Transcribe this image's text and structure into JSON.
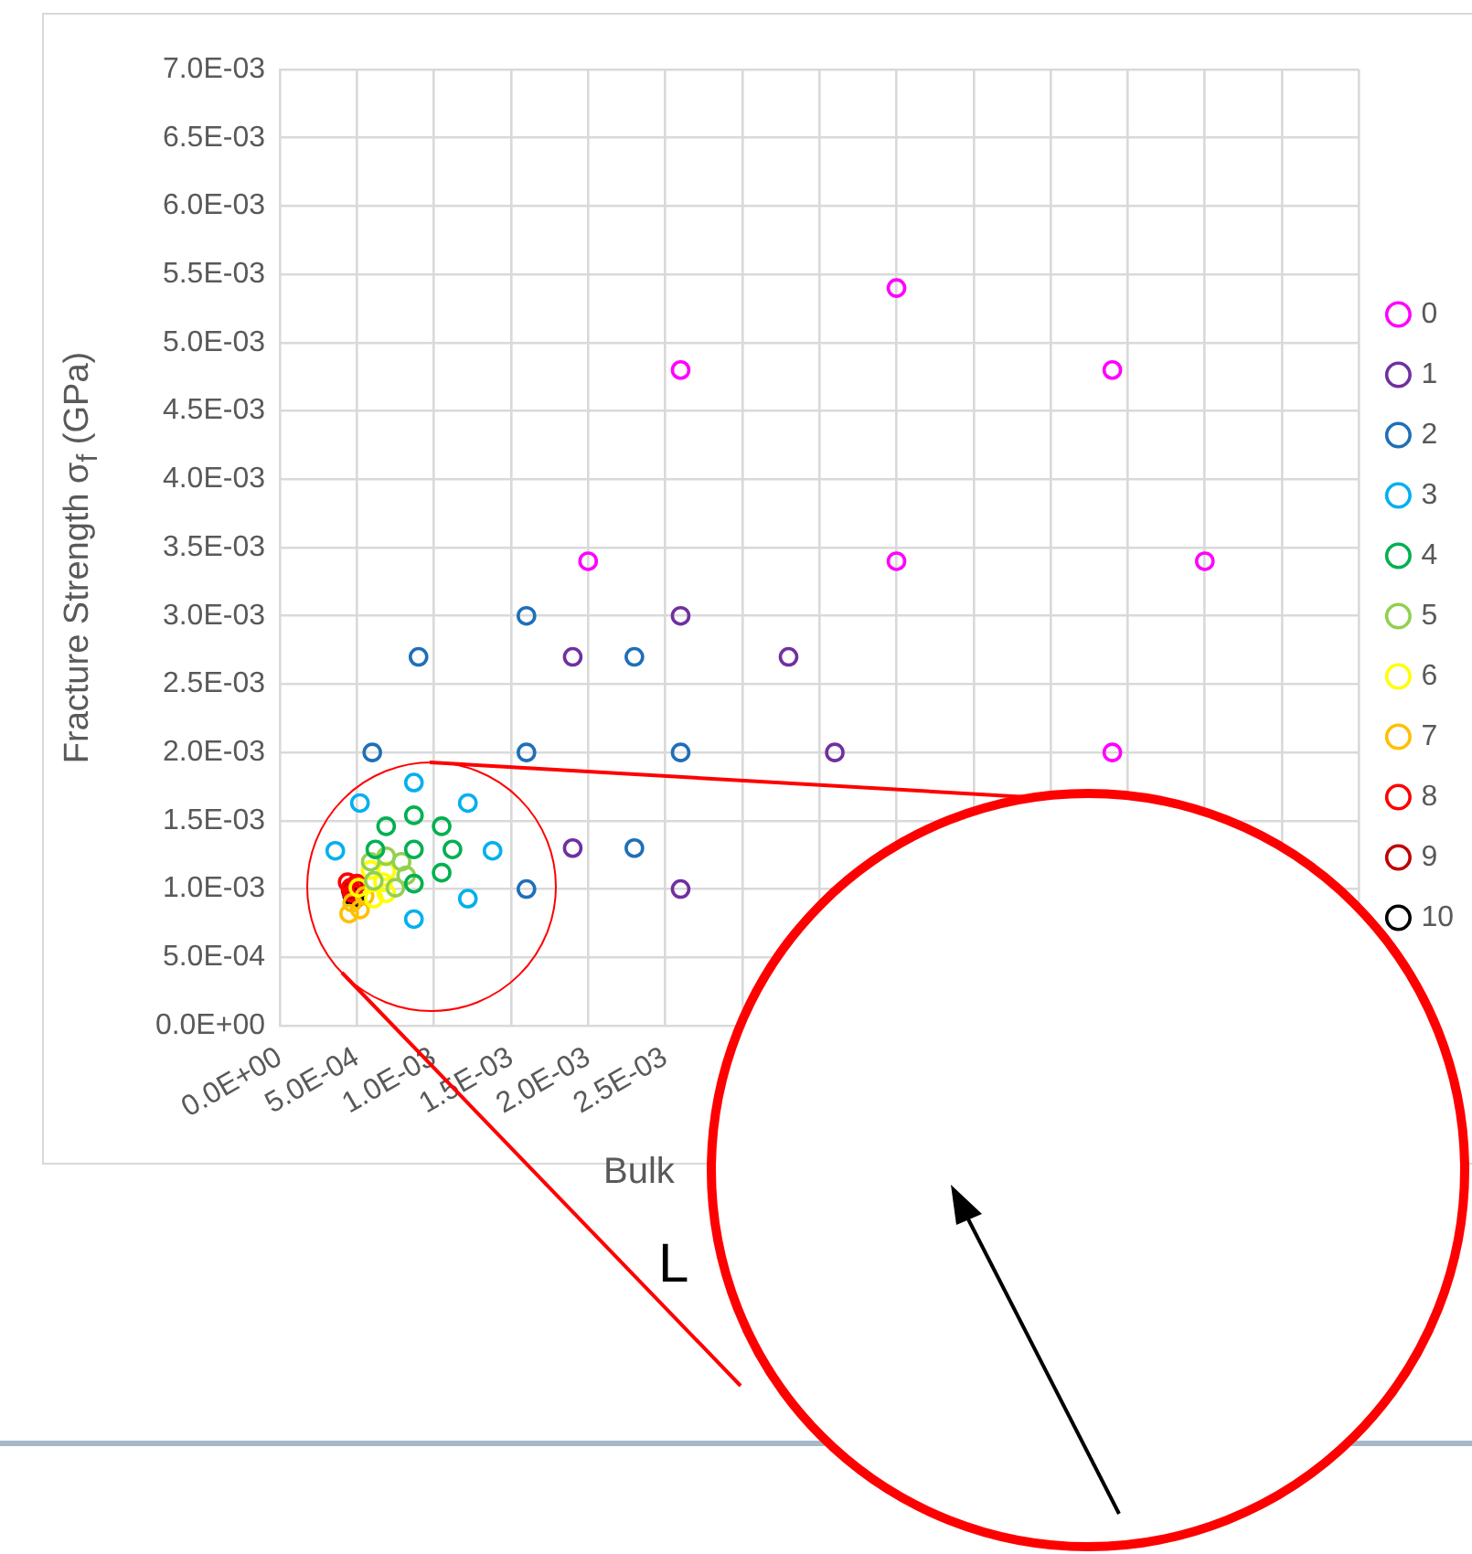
{
  "chart_data": {
    "type": "scatter",
    "xlabel": "Bulk",
    "ylabel": "Fracture Strength σ$_{f}$ (GPa)",
    "annotations": [
      "L"
    ],
    "xlim": [
      0,
      0.007
    ],
    "xticks": [
      {
        "value": 0,
        "label": "0.0E+00"
      },
      {
        "value": 0.0005,
        "label": "5.0E-04"
      },
      {
        "value": 0.001,
        "label": "1.0E-03"
      },
      {
        "value": 0.0015,
        "label": "1.5E-03"
      },
      {
        "value": 0.002,
        "label": "2.0E-03"
      },
      {
        "value": 0.0025,
        "label": "2.5E-03"
      },
      {
        "value": 0.003,
        "label": null
      },
      {
        "value": 0.0035,
        "label": null
      },
      {
        "value": 0.004,
        "label": null
      },
      {
        "value": 0.0045,
        "label": null
      },
      {
        "value": 0.005,
        "label": null
      },
      {
        "value": 0.0055,
        "label": null
      },
      {
        "value": 0.006,
        "label": null
      },
      {
        "value": 0.0065,
        "label": null
      },
      {
        "value": 0.007,
        "label": null
      }
    ],
    "ylim": [
      0,
      0.007
    ],
    "yticks": [
      {
        "value": 0,
        "label": "0.0E+00"
      },
      {
        "value": 0.0005,
        "label": "5.0E-04"
      },
      {
        "value": 0.001,
        "label": "1.0E-03"
      },
      {
        "value": 0.0015,
        "label": "1.5E-03"
      },
      {
        "value": 0.002,
        "label": "2.0E-03"
      },
      {
        "value": 0.0025,
        "label": "2.5E-03"
      },
      {
        "value": 0.003,
        "label": "3.0E-03"
      },
      {
        "value": 0.0035,
        "label": "3.5E-03"
      },
      {
        "value": 0.004,
        "label": "4.0E-03"
      },
      {
        "value": 0.0045,
        "label": "4.5E-03"
      },
      {
        "value": 0.005,
        "label": "5.0E-03"
      },
      {
        "value": 0.0055,
        "label": "5.5E-03"
      },
      {
        "value": 0.006,
        "label": "6.0E-03"
      },
      {
        "value": 0.0065,
        "label": "6.5E-03"
      },
      {
        "value": 0.007,
        "label": "7.0E-03"
      }
    ],
    "grid": true,
    "legend": "right",
    "marker": "circle",
    "series": [
      {
        "name": "0",
        "color": "#ff00ff",
        "x": [
          0.002,
          0.0026,
          0.004,
          0.004,
          0.0054,
          0.006,
          0.0054
        ],
        "values": [
          0.0034,
          0.0048,
          0.0054,
          0.0034,
          0.0048,
          0.0034,
          0.002
        ]
      },
      {
        "name": "1",
        "color": "#7030a0",
        "x": [
          0.0026,
          0.0019,
          0.0033,
          0.0036,
          0.0019,
          0.0026
        ],
        "values": [
          0.003,
          0.0027,
          0.0027,
          0.002,
          0.0013,
          0.001
        ]
      },
      {
        "name": "2",
        "color": "#1f6fb8",
        "x": [
          0.0009,
          0.0016,
          0.0023,
          0.0006,
          0.0016,
          0.0026,
          0.0023,
          0.0016
        ],
        "values": [
          0.0027,
          0.003,
          0.0027,
          0.002,
          0.002,
          0.002,
          0.0013,
          0.001
        ]
      },
      {
        "name": "3",
        "color": "#00b0f0",
        "x": [
          0.00087,
          0.00052,
          0.00122,
          0.00036,
          0.00138,
          0.00122,
          0.00087
        ],
        "values": [
          0.00178,
          0.00163,
          0.00163,
          0.00128,
          0.00128,
          0.00093,
          0.00078
        ]
      },
      {
        "name": "4",
        "color": "#00b050",
        "x": [
          0.00087,
          0.00069,
          0.00105,
          0.00062,
          0.00087,
          0.00112,
          0.00105,
          0.00087
        ],
        "values": [
          0.00154,
          0.00146,
          0.00146,
          0.00129,
          0.00129,
          0.00129,
          0.00112,
          0.00104
        ]
      },
      {
        "name": "5",
        "color": "#92d050",
        "x": [
          0.00059,
          0.00069,
          0.00079,
          0.00082,
          0.00075,
          0.00061
        ],
        "values": [
          0.0012,
          0.00124,
          0.0012,
          0.0011,
          0.00101,
          0.00106
        ]
      },
      {
        "name": "6",
        "color": "#ffff00",
        "x": [
          0.00059,
          0.00069,
          0.00069,
          0.00061,
          0.00051,
          0.00067
        ],
        "values": [
          0.00114,
          0.00113,
          0.00097,
          0.00093,
          0.00101,
          0.00105
        ]
      },
      {
        "name": "7",
        "color": "#ffc000",
        "x": [
          0.00047,
          0.00052,
          0.00045,
          0.00055
        ],
        "values": [
          0.0009,
          0.00085,
          0.00082,
          0.00095
        ]
      },
      {
        "name": "8",
        "color": "#ff0000",
        "x": [
          0.00046,
          0.00044,
          0.0005,
          0.00047
        ],
        "values": [
          0.00101,
          0.00105,
          0.00104,
          0.00097
        ]
      },
      {
        "name": "9",
        "color": "#c00000",
        "x": [
          0.00046,
          0.00048
        ],
        "values": [
          0.00099,
          0.00102
        ]
      },
      {
        "name": "10",
        "color": "#000000",
        "x": [
          0.00047,
          0.00049
        ],
        "values": [
          0.00095,
          0.00093
        ]
      }
    ]
  }
}
